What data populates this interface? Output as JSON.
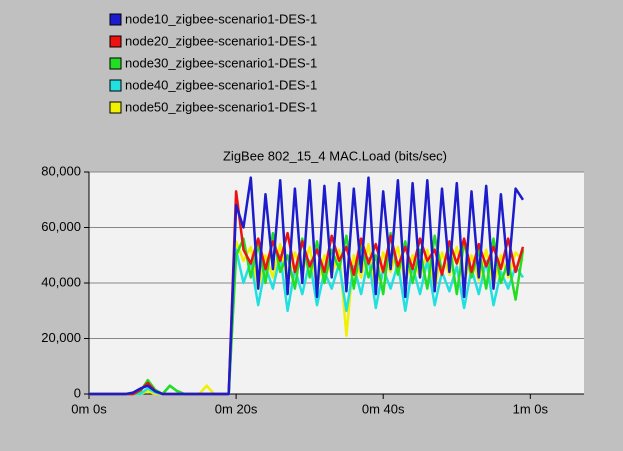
{
  "chart_data": {
    "type": "line",
    "title": "ZigBee 802_15_4 MAC.Load (bits/sec)",
    "x": [
      0,
      1,
      2,
      3,
      4,
      5,
      6,
      7,
      8,
      9,
      10,
      11,
      12,
      13,
      14,
      15,
      16,
      17,
      18,
      19,
      20,
      21,
      22,
      23,
      24,
      25,
      26,
      27,
      28,
      29,
      30,
      31,
      32,
      33,
      34,
      35,
      36,
      37,
      38,
      39,
      40,
      41,
      42,
      43,
      44,
      45,
      46,
      47,
      48,
      49,
      50,
      51,
      52,
      53,
      54,
      55,
      56,
      57,
      58,
      59
    ],
    "series": [
      {
        "name": "node10_zigbee-scenario1-DES-1",
        "color": "#1c1ccc",
        "values": [
          0,
          0,
          0,
          0,
          0,
          0,
          500,
          2000,
          3000,
          1000,
          0,
          0,
          0,
          0,
          0,
          0,
          0,
          0,
          0,
          0,
          68000,
          60000,
          78000,
          38000,
          72000,
          45000,
          77000,
          36000,
          74000,
          40000,
          77000,
          35000,
          75000,
          42000,
          76000,
          37000,
          74000,
          44000,
          78000,
          36000,
          73000,
          45000,
          77000,
          35000,
          76000,
          42000,
          77000,
          37000,
          74000,
          44000,
          76000,
          35000,
          73000,
          42000,
          75000,
          38000,
          72000,
          43000,
          74000,
          70000
        ]
      },
      {
        "name": "node20_zigbee-scenario1-DES-1",
        "color": "#ee1111",
        "values": [
          0,
          0,
          0,
          0,
          0,
          0,
          0,
          1500,
          4000,
          1000,
          0,
          0,
          0,
          0,
          0,
          0,
          0,
          0,
          0,
          0,
          73000,
          52000,
          47000,
          56000,
          45000,
          55000,
          48000,
          58000,
          44000,
          55000,
          46000,
          52000,
          44000,
          57000,
          48000,
          53000,
          43000,
          56000,
          47000,
          54000,
          44000,
          57000,
          46000,
          53000,
          45000,
          56000,
          48000,
          52000,
          43000,
          55000,
          47000,
          56000,
          44000,
          54000,
          46000,
          53000,
          45000,
          56000,
          44000,
          53000
        ]
      },
      {
        "name": "node30_zigbee-scenario1-DES-1",
        "color": "#22dd22",
        "values": [
          0,
          0,
          0,
          0,
          0,
          0,
          0,
          1000,
          5000,
          1500,
          0,
          3000,
          1000,
          0,
          0,
          0,
          0,
          0,
          0,
          0,
          50000,
          56000,
          42000,
          54000,
          40000,
          58000,
          44000,
          50000,
          38000,
          56000,
          42000,
          55000,
          40000,
          52000,
          45000,
          57000,
          38000,
          54000,
          42000,
          50000,
          36000,
          58000,
          43000,
          55000,
          40000,
          52000,
          38000,
          57000,
          44000,
          54000,
          36000,
          55000,
          42000,
          52000,
          38000,
          56000,
          40000,
          48000,
          34000,
          52000
        ]
      },
      {
        "name": "node40_zigbee-scenario1-DES-1",
        "color": "#22e0e0",
        "values": [
          0,
          0,
          0,
          0,
          0,
          0,
          0,
          0,
          2000,
          500,
          0,
          3000,
          1000,
          0,
          0,
          0,
          0,
          0,
          0,
          0,
          52000,
          40000,
          48000,
          32000,
          46000,
          38000,
          50000,
          30000,
          45000,
          36000,
          48000,
          32000,
          44000,
          38000,
          47000,
          30000,
          46000,
          36000,
          49000,
          31000,
          45000,
          38000,
          47000,
          30000,
          46000,
          36000,
          48000,
          32000,
          44000,
          37000,
          46000,
          31000,
          45000,
          36000,
          48000,
          32000,
          44000,
          38000,
          46000,
          42000
        ]
      },
      {
        "name": "node50_zigbee-scenario1-DES-1",
        "color": "#f0f000",
        "values": [
          0,
          0,
          0,
          0,
          0,
          0,
          0,
          0,
          1000,
          0,
          0,
          0,
          0,
          0,
          0,
          0,
          3000,
          0,
          0,
          0,
          55000,
          48000,
          53000,
          38000,
          50000,
          42000,
          54000,
          40000,
          51000,
          44000,
          53000,
          39000,
          50000,
          43000,
          52000,
          21000,
          50000,
          42000,
          54000,
          38000,
          51000,
          44000,
          53000,
          40000,
          50000,
          42000,
          52000,
          38000,
          51000,
          43000,
          53000,
          40000,
          50000,
          41000,
          52000,
          39000,
          50000,
          42000,
          51000,
          48000
        ]
      }
    ],
    "xlim": [
      0,
      67.3
    ],
    "xticks": [
      {
        "value": 0,
        "label": "0m 0s"
      },
      {
        "value": 20,
        "label": "0m 20s"
      },
      {
        "value": 40,
        "label": "0m 40s"
      },
      {
        "value": 60,
        "label": "1m 0s"
      }
    ],
    "ylim": [
      0,
      80000
    ],
    "yticks": [
      0,
      {
        "value": 20000,
        "label": "20,000"
      },
      {
        "value": 40000,
        "label": "40,000"
      },
      {
        "value": 60000,
        "label": "60,000"
      },
      {
        "value": 80000,
        "label": "80,000"
      }
    ],
    "grid": true
  }
}
